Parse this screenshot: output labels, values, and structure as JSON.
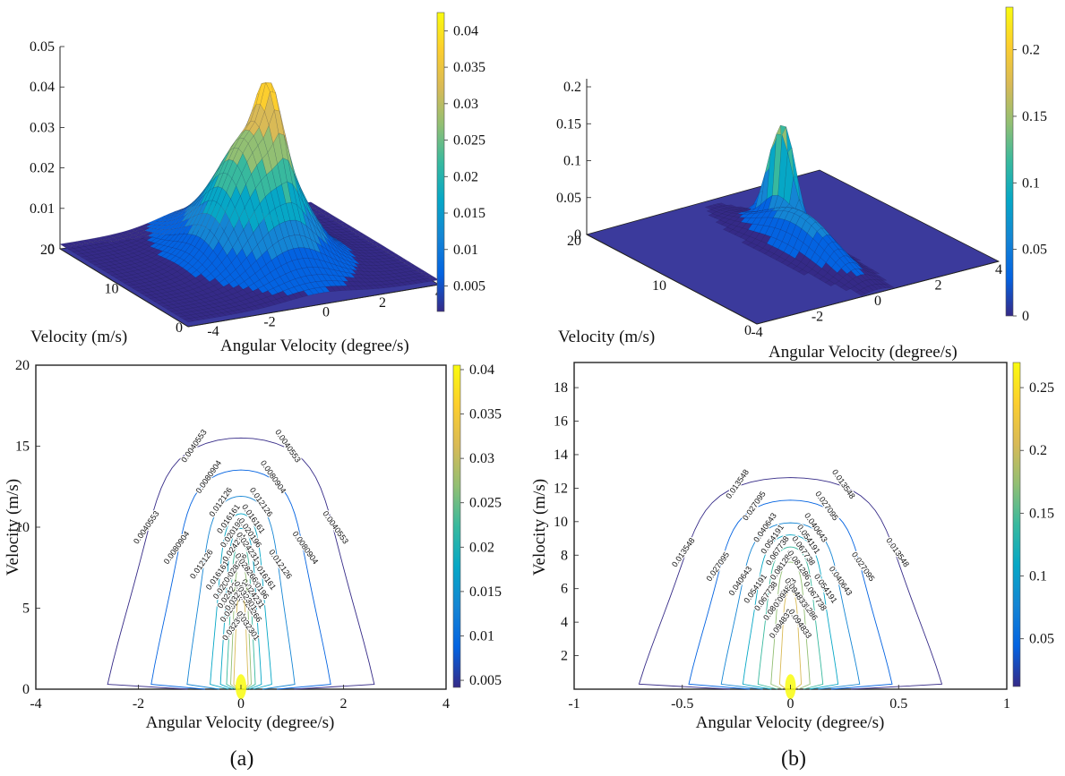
{
  "colors": {
    "parula": [
      "#352a87",
      "#0363e1",
      "#1485d4",
      "#06a7c6",
      "#38b99e",
      "#92bf73",
      "#d9ba56",
      "#fcce2e",
      "#f9fb0e"
    ],
    "axis": "#222222"
  },
  "chart_data": [
    {
      "id": "a-top",
      "type": "surface3d",
      "panel": "a",
      "xlabel": "Angular Velocity (degree/s)",
      "ylabel": "Velocity (m/s)",
      "x_ticks": [
        "-4",
        "-2",
        "0",
        "2",
        "4"
      ],
      "y_ticks": [
        "0",
        "10",
        "20"
      ],
      "z_ticks": [
        "0",
        "0.01",
        "0.02",
        "0.03",
        "0.04",
        "0.05"
      ],
      "colorbar_ticks": [
        "0.005",
        "0.01",
        "0.015",
        "0.02",
        "0.025",
        "0.03",
        "0.035",
        "0.04"
      ],
      "zlim": [
        0,
        0.05
      ],
      "peak_value": 0.041
    },
    {
      "id": "b-top",
      "type": "surface3d",
      "panel": "b",
      "xlabel": "Angular Velocity (degree/s)",
      "ylabel": "Velocity (m/s)",
      "x_ticks": [
        "-4",
        "-2",
        "0",
        "2",
        "4"
      ],
      "y_ticks": [
        "0",
        "10",
        "20"
      ],
      "z_ticks": [
        "0",
        "0.05",
        "0.1",
        "0.15",
        "0.2"
      ],
      "colorbar_ticks": [
        "0",
        "0.05",
        "0.1",
        "0.15",
        "0.2"
      ],
      "zlim": [
        0,
        0.22
      ],
      "peak_value": 0.22
    },
    {
      "id": "a-bottom",
      "type": "contour",
      "panel": "a",
      "xlabel": "Angular Velocity (degree/s)",
      "ylabel": "Velocity (m/s)",
      "xlim": [
        -4,
        4
      ],
      "ylim": [
        0,
        20
      ],
      "x_ticks": [
        "-4",
        "-2",
        "0",
        "2",
        "4"
      ],
      "y_ticks": [
        "0",
        "5",
        "10",
        "15",
        "20"
      ],
      "colorbar_ticks": [
        "0.005",
        "0.01",
        "0.015",
        "0.02",
        "0.025",
        "0.03",
        "0.035",
        "0.04"
      ],
      "contour_levels": [
        "0.0040553",
        "0.0080904",
        "0.012126",
        "0.016161",
        "0.020196",
        "0.024231",
        "0.028266",
        "0.032301"
      ],
      "contours_data": [
        {
          "level": 0.0040553,
          "half_width": 2.6,
          "top": 17.2
        },
        {
          "level": 0.0080904,
          "half_width": 1.75,
          "top": 15.0
        },
        {
          "level": 0.012126,
          "half_width": 1.05,
          "top": 13.2
        },
        {
          "level": 0.016161,
          "half_width": 0.6,
          "top": 12.0
        },
        {
          "level": 0.020196,
          "half_width": 0.4,
          "top": 11.0
        },
        {
          "level": 0.024231,
          "half_width": 0.28,
          "top": 10.0
        },
        {
          "level": 0.028266,
          "half_width": 0.2,
          "top": 8.5
        },
        {
          "level": 0.032301,
          "half_width": 0.14,
          "top": 6.5
        }
      ]
    },
    {
      "id": "b-bottom",
      "type": "contour",
      "panel": "b",
      "xlabel": "Angular Velocity (degree/s)",
      "ylabel": "Velocity (m/s)",
      "xlim": [
        -1,
        1
      ],
      "ylim": [
        0,
        19.5
      ],
      "x_ticks": [
        "-1",
        "-0.5",
        "0",
        "0.5",
        "1"
      ],
      "y_ticks": [
        "2",
        "4",
        "6",
        "8",
        "10",
        "12",
        "14",
        "16",
        "18"
      ],
      "colorbar_ticks": [
        "0.05",
        "0.1",
        "0.15",
        "0.2",
        "0.25"
      ],
      "contour_levels": [
        "0.013548",
        "0.027095",
        "0.040643",
        "0.054191",
        "0.067738",
        "0.081286",
        "0.094833"
      ],
      "contours_data": [
        {
          "level": 0.013548,
          "half_width": 0.7,
          "top": 14.0
        },
        {
          "level": 0.027095,
          "half_width": 0.47,
          "top": 12.5
        },
        {
          "level": 0.040643,
          "half_width": 0.32,
          "top": 11.0
        },
        {
          "level": 0.054191,
          "half_width": 0.22,
          "top": 10.2
        },
        {
          "level": 0.067738,
          "half_width": 0.15,
          "top": 9.4
        },
        {
          "level": 0.081286,
          "half_width": 0.09,
          "top": 8.4
        },
        {
          "level": 0.094833,
          "half_width": 0.05,
          "top": 6.5
        }
      ]
    }
  ],
  "panel_labels": [
    "(a)",
    "(b)"
  ]
}
